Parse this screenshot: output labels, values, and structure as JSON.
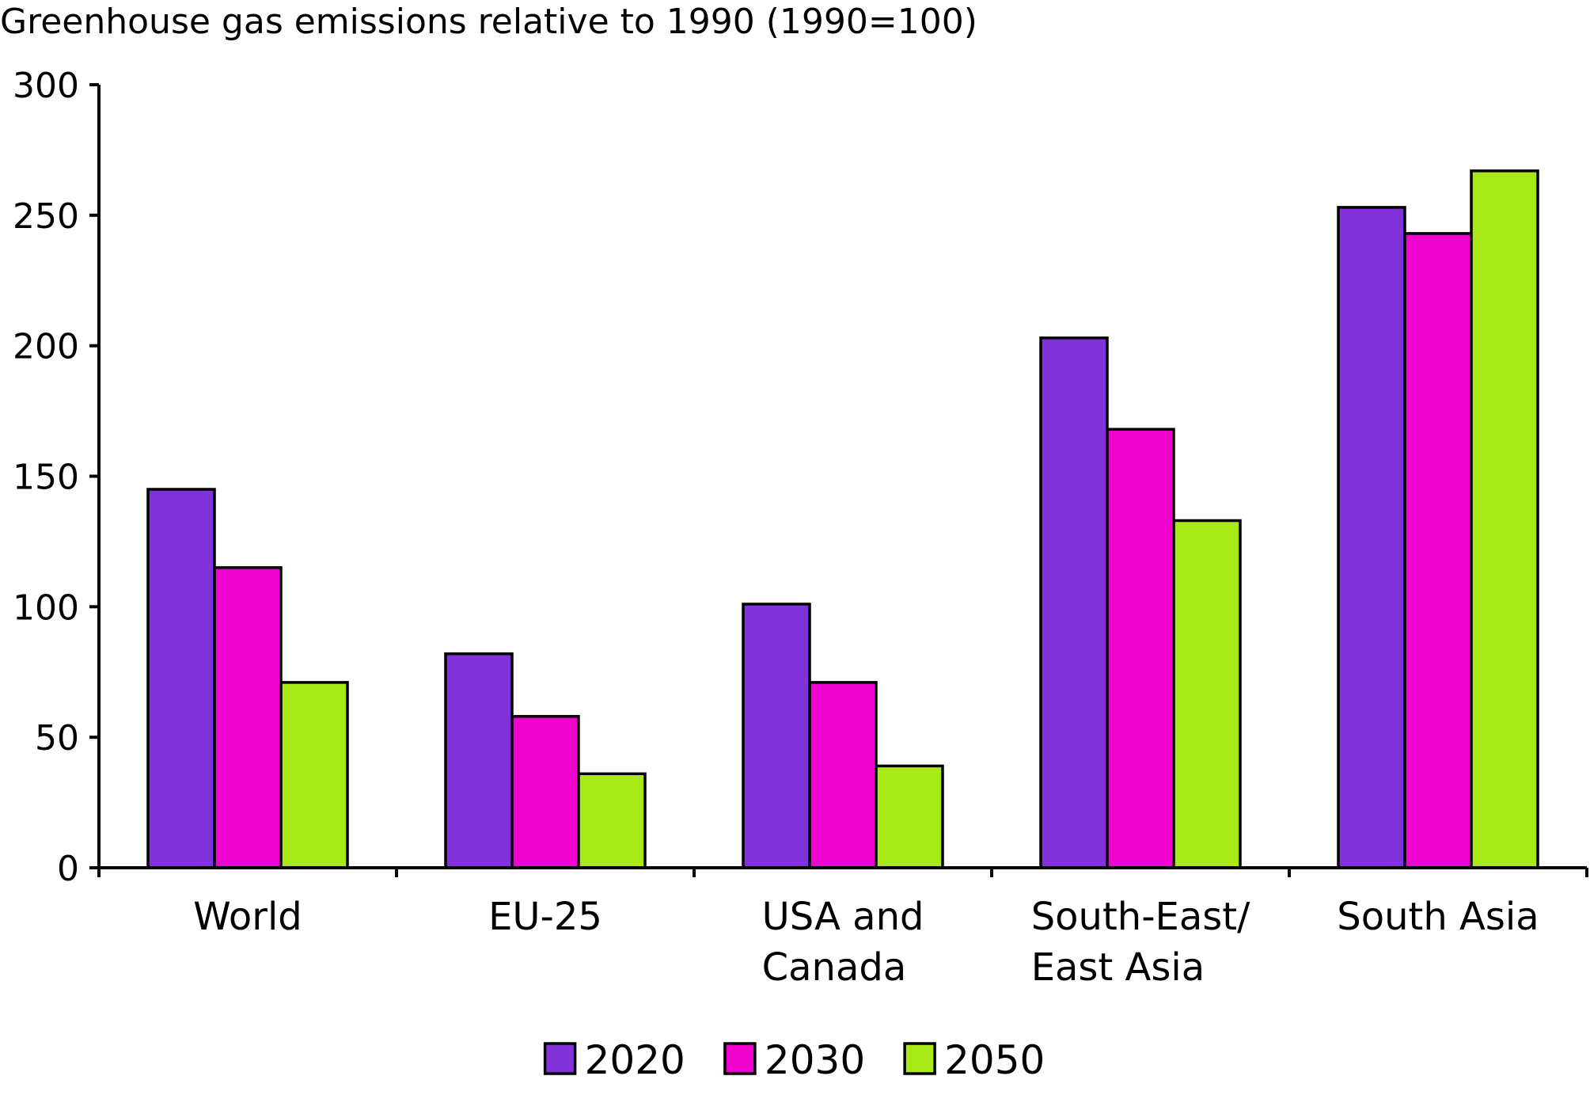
{
  "chart_data": {
    "type": "bar",
    "title": "Greenhouse gas emissions relative to 1990 (1990=100)",
    "xlabel": "",
    "ylabel": "",
    "categories": [
      [
        "World"
      ],
      [
        "EU-25"
      ],
      [
        "USA and",
        "Canada"
      ],
      [
        "South-East/",
        "East Asia"
      ],
      [
        "South Asia"
      ]
    ],
    "series": [
      {
        "name": "2020",
        "color": "#8133d9",
        "values": [
          145,
          82,
          101,
          203,
          253
        ]
      },
      {
        "name": "2030",
        "color": "#f003cf",
        "values": [
          115,
          58,
          71,
          168,
          243
        ]
      },
      {
        "name": "2050",
        "color": "#a9e91a",
        "values": [
          71,
          36,
          39,
          133,
          267
        ]
      }
    ],
    "ylim": [
      0,
      300
    ],
    "yticks": [
      0,
      50,
      100,
      150,
      200,
      250,
      300
    ],
    "grid": false,
    "legend_position": "bottom"
  }
}
